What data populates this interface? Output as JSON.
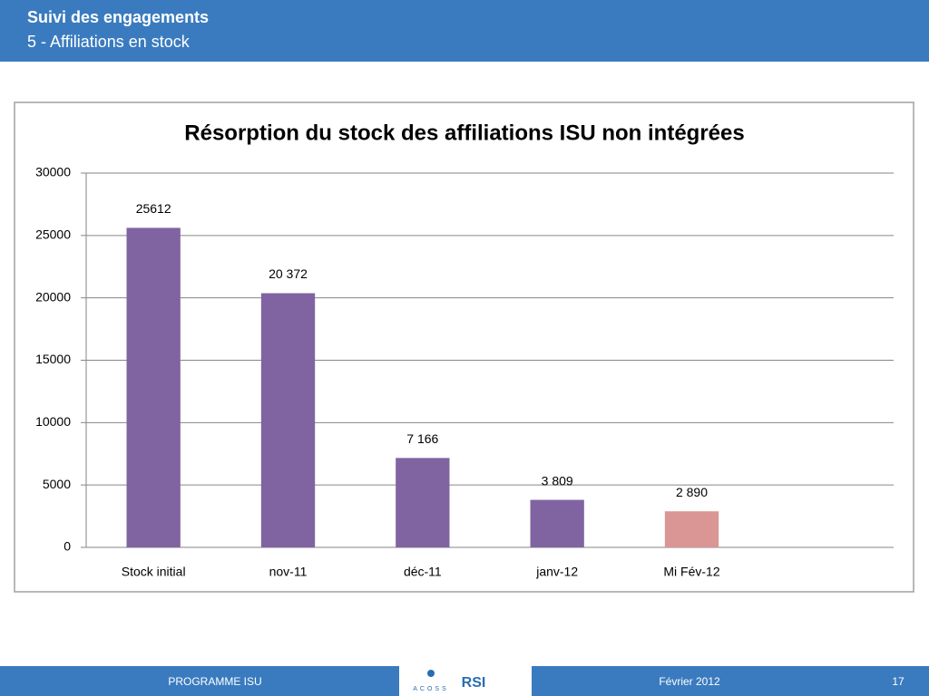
{
  "header": {
    "title": "Suivi des engagements",
    "subtitle": "5 - Affiliations en stock"
  },
  "chart_data": {
    "type": "bar",
    "title": "Résorption du stock des affiliations  ISU non intégrées",
    "categories": [
      "Stock initial",
      "nov-11",
      "déc-11",
      "janv-12",
      "Mi Fév-12",
      null
    ],
    "values": [
      25612,
      20372,
      7166,
      3809,
      2890,
      null
    ],
    "value_labels": [
      "25612",
      "20 372",
      "7 166",
      "3 809",
      "2 890",
      null
    ],
    "colors": [
      "#8064a2",
      "#8064a2",
      "#8064a2",
      "#8064a2",
      "#d99694",
      null
    ],
    "ylim": [
      0,
      30000
    ],
    "yticks": [
      0,
      5000,
      10000,
      15000,
      20000,
      25000,
      30000
    ],
    "grid": true
  },
  "footer": {
    "left": "PROGRAMME ISU",
    "logo_left": "ACOSS",
    "logo_right": "RSI",
    "date": "Février 2012",
    "page": "17"
  }
}
